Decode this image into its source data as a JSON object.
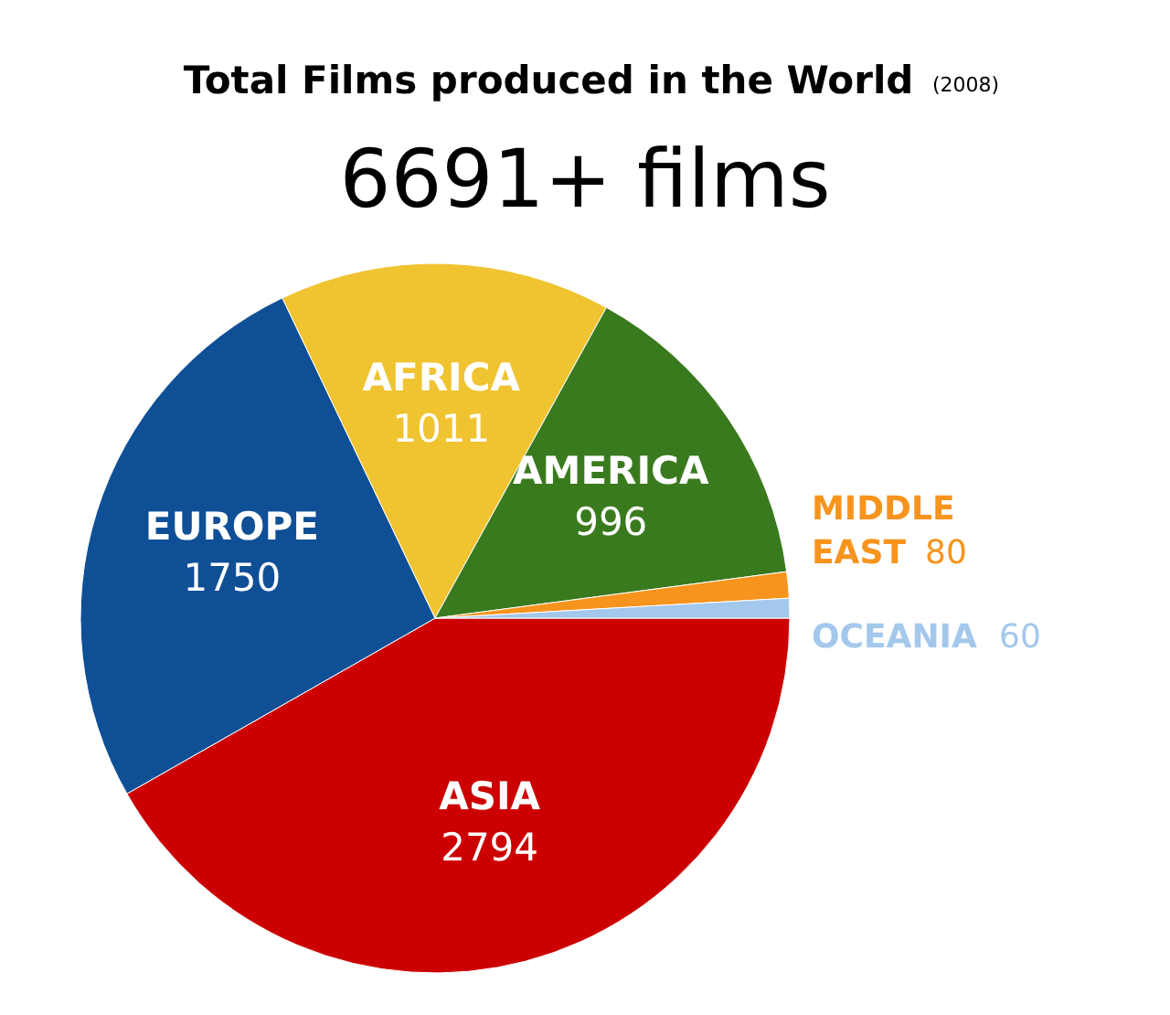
{
  "chart_data": {
    "type": "pie",
    "title": "Total Films produced in the World",
    "subtitle": "6691+  films",
    "annotations": [
      "(2008)"
    ],
    "categories": [
      "ASIA",
      "EUROPE",
      "AFRICA",
      "AMERICA",
      "MIDDLE EAST",
      "OCEANIA"
    ],
    "values": [
      2794,
      1750,
      1011,
      996,
      80,
      60
    ],
    "colors": [
      "#cc0000",
      "#0f4f96",
      "#f0c330",
      "#3a7a1e",
      "#f7941d",
      "#a4c8ec"
    ],
    "data_labels": true
  }
}
